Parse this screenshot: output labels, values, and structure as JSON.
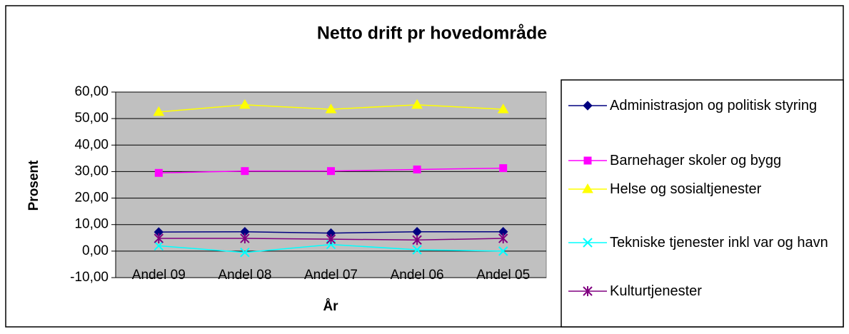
{
  "chart_data": {
    "type": "line",
    "title": "Netto drift pr hovedområde",
    "x_label": "År",
    "y_label": "Prosent",
    "categories": [
      "Andel 09",
      "Andel 08",
      "Andel 07",
      "Andel 06",
      "Andel 05"
    ],
    "series": [
      {
        "name": "Administrasjon og politisk styring",
        "color": "#000080",
        "marker": "diamond",
        "values": [
          7.2,
          7.3,
          6.8,
          7.3,
          7.3
        ]
      },
      {
        "name": "Barnehager skoler og bygg",
        "color": "#ff00ff",
        "marker": "square",
        "values": [
          29.5,
          30.2,
          30.2,
          30.8,
          31.3
        ]
      },
      {
        "name": "Helse og sosialtjenester",
        "color": "#ffff00",
        "marker": "triangle",
        "values": [
          52.5,
          55.2,
          53.5,
          55.2,
          53.5
        ]
      },
      {
        "name": "Tekniske tjenester inkl var og havn",
        "color": "#00ffff",
        "marker": "x",
        "values": [
          2.0,
          -0.5,
          2.5,
          0.5,
          0.0
        ]
      },
      {
        "name": "Kulturtjenester",
        "color": "#800080",
        "marker": "star",
        "values": [
          4.8,
          4.8,
          4.5,
          4.2,
          4.8
        ]
      }
    ],
    "ylim": [
      -10,
      60
    ],
    "yticks": [
      {
        "value": -10,
        "label": "-10,00"
      },
      {
        "value": 0,
        "label": "0,00"
      },
      {
        "value": 10,
        "label": "10,00"
      },
      {
        "value": 20,
        "label": "20,00"
      },
      {
        "value": 30,
        "label": "30,00"
      },
      {
        "value": 40,
        "label": "40,00"
      },
      {
        "value": 50,
        "label": "50,00"
      },
      {
        "value": 60,
        "label": "60,00"
      }
    ],
    "grid": true,
    "legend": "right"
  }
}
